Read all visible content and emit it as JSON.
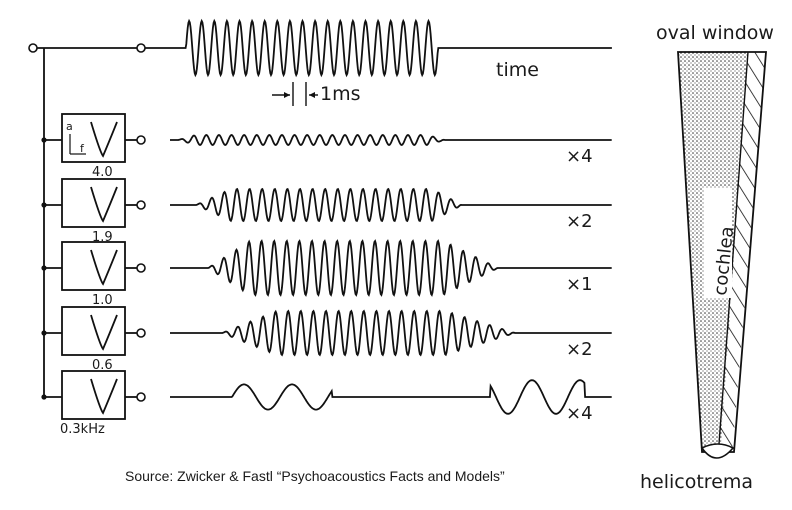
{
  "input_signal": {
    "time_label": "time",
    "period_label": "1ms"
  },
  "filters": [
    {
      "freq_label": "4.0",
      "multiplier": "×4",
      "axis_a": "a",
      "axis_f": "f"
    },
    {
      "freq_label": "1.9",
      "multiplier": "×2"
    },
    {
      "freq_label": "1.0",
      "multiplier": "×1"
    },
    {
      "freq_label": "0.6",
      "multiplier": "×2"
    },
    {
      "freq_label": "0.3kHz",
      "multiplier": "×4"
    }
  ],
  "cochlea": {
    "top_label": "oval window",
    "body_label": "cochlea",
    "bottom_label": "helicotrema"
  },
  "source": "Source: Zwicker & Fastl “Psychoacoustics Facts and Models”"
}
